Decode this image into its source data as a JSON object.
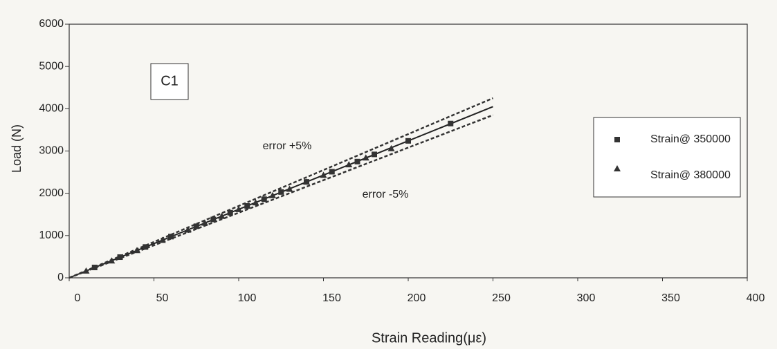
{
  "chart_data": {
    "type": "scatter",
    "panel_label": "C1",
    "x_label": "Strain Reading(με)",
    "y_label": "Load (N)",
    "xlim": [
      0,
      400
    ],
    "ylim": [
      0,
      6000
    ],
    "xticks": [
      0,
      50,
      100,
      150,
      200,
      250,
      300,
      350,
      400
    ],
    "yticks": [
      0,
      1000,
      2000,
      3000,
      4000,
      5000,
      6000
    ],
    "grid": false,
    "legend": "right",
    "annotations": [
      "error +5%",
      "error -5%"
    ],
    "series": [
      {
        "name": "Strain@ 350000",
        "color": "#333333",
        "marker": "square",
        "x": [
          15,
          30,
          45,
          60,
          75,
          85,
          95,
          105,
          115,
          125,
          140,
          155,
          170,
          180,
          200,
          225
        ],
        "values": [
          245,
          490,
          730,
          975,
          1220,
          1380,
          1540,
          1700,
          1860,
          2030,
          2270,
          2510,
          2750,
          2920,
          3240,
          3650
        ]
      },
      {
        "name": "Strain@ 380000",
        "color": "#333333",
        "marker": "triangle",
        "x": [
          10,
          25,
          40,
          55,
          70,
          80,
          90,
          100,
          110,
          120,
          130,
          140,
          150,
          165,
          175,
          190
        ],
        "values": [
          165,
          405,
          650,
          890,
          1135,
          1300,
          1460,
          1620,
          1780,
          1950,
          2100,
          2270,
          2430,
          2680,
          2840,
          3060
        ]
      }
    ],
    "lines": [
      {
        "style": "solid",
        "color": "#222222",
        "x": [
          0,
          250
        ],
        "values": [
          0,
          4050
        ]
      },
      {
        "style": "dashed",
        "color": "#333333",
        "x": [
          0,
          250
        ],
        "values": [
          0,
          4250
        ]
      },
      {
        "style": "dashed",
        "color": "#333333",
        "x": [
          0,
          250
        ],
        "values": [
          0,
          3850
        ]
      }
    ]
  }
}
